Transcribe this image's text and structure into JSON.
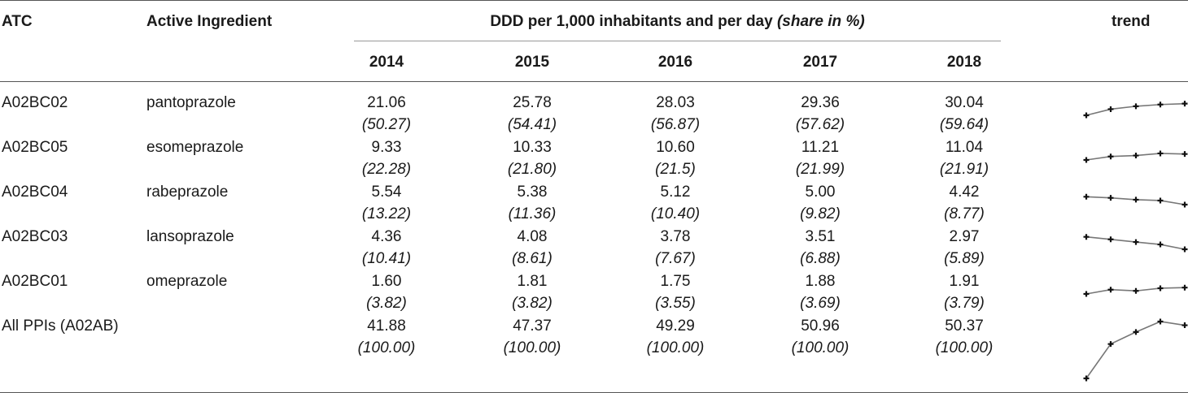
{
  "header": {
    "atc": "ATC",
    "ingredient": "Active Ingredient",
    "ddd_main": "DDD per 1,000 inhabitants and per day",
    "ddd_share": "(share in %)",
    "trend": "trend",
    "years": [
      "2014",
      "2015",
      "2016",
      "2017",
      "2018"
    ]
  },
  "rows": [
    {
      "atc": "A02BC02",
      "name": "pantoprazole",
      "values": [
        "21.06",
        "25.78",
        "28.03",
        "29.36",
        "30.04"
      ],
      "shares": [
        "(50.27)",
        "(54.41)",
        "(56.87)",
        "(57.62)",
        "(59.64)"
      ]
    },
    {
      "atc": "A02BC05",
      "name": "esomeprazole",
      "values": [
        "9.33",
        "10.33",
        "10.60",
        "11.21",
        "11.04"
      ],
      "shares": [
        "(22.28)",
        "(21.80)",
        "(21.5)",
        "(21.99)",
        "(21.91)"
      ]
    },
    {
      "atc": "A02BC04",
      "name": "rabeprazole",
      "values": [
        "5.54",
        "5.38",
        "5.12",
        "5.00",
        "4.42"
      ],
      "shares": [
        "(13.22)",
        "(11.36)",
        "(10.40)",
        "(9.82)",
        "(8.77)"
      ]
    },
    {
      "atc": "A02BC03",
      "name": "lansoprazole",
      "values": [
        "4.36",
        "4.08",
        "3.78",
        "3.51",
        "2.97"
      ],
      "shares": [
        "(10.41)",
        "(8.61)",
        "(7.67)",
        "(6.88)",
        "(5.89)"
      ]
    },
    {
      "atc": "A02BC01",
      "name": "omeprazole",
      "values": [
        "1.60",
        "1.81",
        "1.75",
        "1.88",
        "1.91"
      ],
      "shares": [
        "(3.82)",
        "(3.82)",
        "(3.55)",
        "(3.69)",
        "(3.79)"
      ]
    },
    {
      "atc": "All PPIs (A02AB)",
      "name": "",
      "values": [
        "41.88",
        "47.37",
        "49.29",
        "50.96",
        "50.37"
      ],
      "shares": [
        "(100.00)",
        "(100.00)",
        "(100.00)",
        "(100.00)",
        "(100.00)"
      ]
    }
  ]
}
